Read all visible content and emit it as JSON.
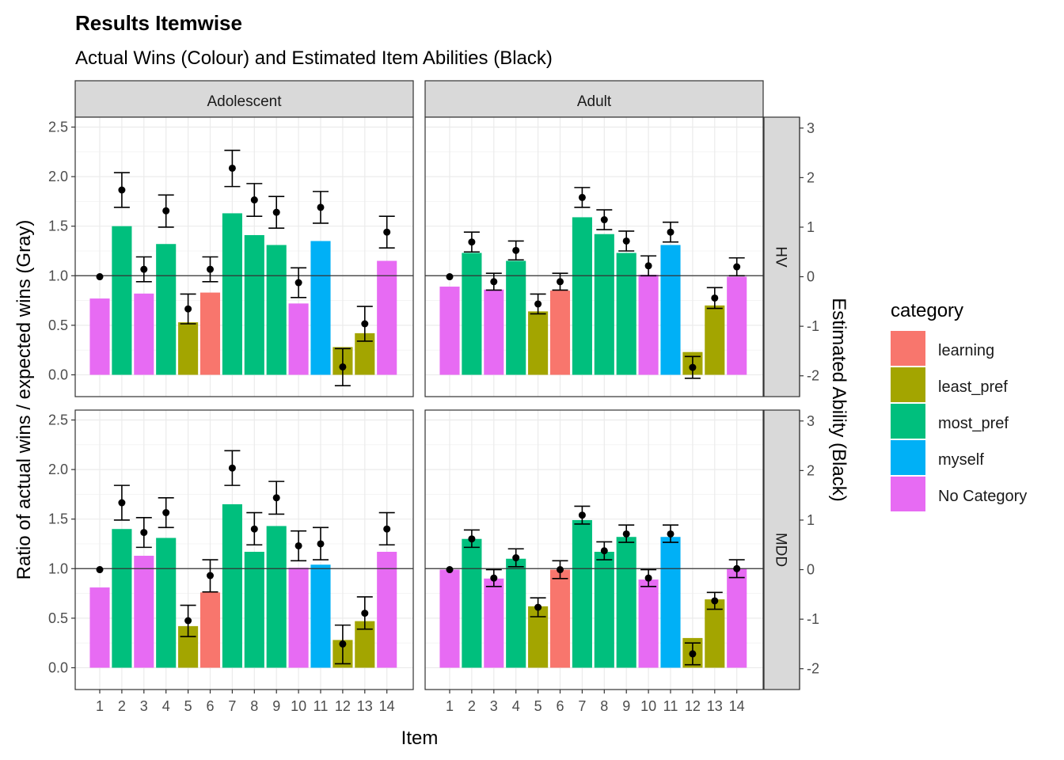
{
  "chart_data": {
    "type": "bar",
    "title": "Results Itemwise",
    "subtitle": "Actual Wins (Colour) and Estimated Item Abilities (Black)",
    "xlabel": "Item",
    "ylabel": "Ratio of actual wins / expected wins (Gray)",
    "y2label": "Estimated Ability (Black)",
    "ylim": [
      -0.22,
      2.6
    ],
    "y2lim": [
      -2.42,
      3.22
    ],
    "yticks": [
      "0.0",
      "0.5",
      "1.0",
      "1.5",
      "2.0",
      "2.5"
    ],
    "y2ticks": [
      "-2",
      "-1",
      "0",
      "1",
      "2",
      "3"
    ],
    "reference_line": 1.0,
    "categories": [
      "1",
      "2",
      "3",
      "4",
      "5",
      "6",
      "7",
      "8",
      "9",
      "10",
      "11",
      "12",
      "13",
      "14"
    ],
    "item_category": [
      "No Category",
      "most_pref",
      "No Category",
      "most_pref",
      "least_pref",
      "learning",
      "most_pref",
      "most_pref",
      "most_pref",
      "No Category",
      "myself",
      "least_pref",
      "least_pref",
      "No Category"
    ],
    "column_facets": [
      "Adolescent",
      "Adult"
    ],
    "row_facets": [
      "HV",
      "MDD"
    ],
    "legend": {
      "title": "category",
      "position": "right",
      "entries": [
        {
          "name": "learning",
          "color": "#F8766D"
        },
        {
          "name": "least_pref",
          "color": "#A3A500"
        },
        {
          "name": "most_pref",
          "color": "#00BF7D"
        },
        {
          "name": "myself",
          "color": "#00B0F6"
        },
        {
          "name": "No Category",
          "color": "#E76BF3"
        }
      ]
    },
    "panels": [
      {
        "row": "HV",
        "col": "Adolescent",
        "ratio": [
          0.77,
          1.5,
          0.82,
          1.32,
          0.53,
          0.83,
          1.63,
          1.41,
          1.31,
          0.72,
          1.35,
          0.28,
          0.42,
          1.15
        ],
        "ability": [
          0.0,
          1.75,
          0.15,
          1.33,
          -0.65,
          0.15,
          2.19,
          1.55,
          1.3,
          -0.12,
          1.4,
          -1.82,
          -0.95,
          0.9
        ],
        "ability_lower": [
          0.0,
          1.4,
          -0.1,
          1.0,
          -0.95,
          -0.1,
          1.82,
          1.22,
          0.98,
          -0.42,
          1.08,
          -2.2,
          -1.3,
          0.58
        ],
        "ability_upper": [
          0.0,
          2.1,
          0.4,
          1.65,
          -0.35,
          0.4,
          2.55,
          1.88,
          1.62,
          0.18,
          1.72,
          -1.45,
          -0.6,
          1.22
        ]
      },
      {
        "row": "HV",
        "col": "Adult",
        "ratio": [
          0.89,
          1.23,
          0.86,
          1.15,
          0.64,
          0.85,
          1.59,
          1.42,
          1.23,
          1.01,
          1.31,
          0.23,
          0.7,
          0.99
        ],
        "ability": [
          0.0,
          0.7,
          -0.1,
          0.53,
          -0.55,
          -0.1,
          1.6,
          1.15,
          0.72,
          0.22,
          0.9,
          -1.83,
          -0.43,
          0.2
        ],
        "ability_lower": [
          0.0,
          0.5,
          -0.27,
          0.34,
          -0.75,
          -0.27,
          1.4,
          0.95,
          0.52,
          0.02,
          0.7,
          -2.05,
          -0.64,
          0.02
        ],
        "ability_upper": [
          0.0,
          0.9,
          0.07,
          0.72,
          -0.35,
          0.07,
          1.8,
          1.35,
          0.92,
          0.42,
          1.1,
          -1.61,
          -0.22,
          0.38
        ]
      },
      {
        "row": "MDD",
        "col": "Adolescent",
        "ratio": [
          0.81,
          1.4,
          1.13,
          1.31,
          0.42,
          0.76,
          1.65,
          1.17,
          1.43,
          1.01,
          1.04,
          0.28,
          0.47,
          1.17
        ],
        "ability": [
          0.0,
          1.35,
          0.75,
          1.15,
          -1.03,
          -0.12,
          2.05,
          0.82,
          1.45,
          0.48,
          0.52,
          -1.5,
          -0.88,
          0.82
        ],
        "ability_lower": [
          0.0,
          1.0,
          0.45,
          0.85,
          -1.35,
          -0.45,
          1.7,
          0.5,
          1.12,
          0.18,
          0.2,
          -1.9,
          -1.2,
          0.5
        ],
        "ability_upper": [
          0.0,
          1.7,
          1.05,
          1.45,
          -0.72,
          0.2,
          2.4,
          1.15,
          1.78,
          0.78,
          0.85,
          -1.12,
          -0.55,
          1.15
        ]
      },
      {
        "row": "MDD",
        "col": "Adult",
        "ratio": [
          0.99,
          1.3,
          0.9,
          1.1,
          0.62,
          0.99,
          1.49,
          1.17,
          1.32,
          0.89,
          1.32,
          0.3,
          0.69,
          1.0
        ],
        "ability": [
          0.0,
          0.62,
          -0.17,
          0.24,
          -0.76,
          0.0,
          1.1,
          0.38,
          0.72,
          -0.17,
          0.72,
          -1.7,
          -0.63,
          0.02
        ],
        "ability_lower": [
          0.0,
          0.45,
          -0.34,
          0.06,
          -0.95,
          -0.18,
          0.92,
          0.2,
          0.55,
          -0.34,
          0.55,
          -1.92,
          -0.8,
          -0.16
        ],
        "ability_upper": [
          0.0,
          0.8,
          0.0,
          0.42,
          -0.57,
          0.18,
          1.28,
          0.56,
          0.9,
          0.0,
          0.9,
          -1.48,
          -0.46,
          0.2
        ]
      }
    ]
  }
}
